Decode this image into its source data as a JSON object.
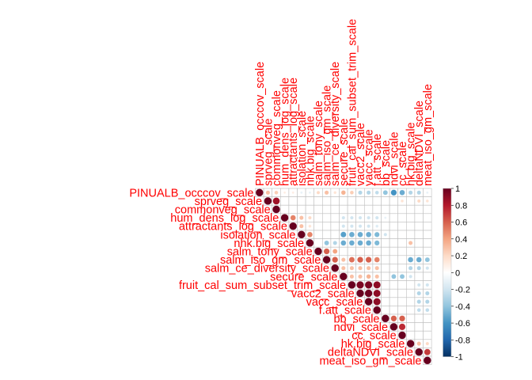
{
  "chart_data": {
    "type": "heatmap",
    "subtype": "correlation-matrix-upper-triangle",
    "method": "circle",
    "variables": [
      "PINUALB_occcov_scale",
      "sprveg_scale",
      "commonveg_scale",
      "hum_dens_log_scale",
      "attractants_log_scale",
      "isolation_scale",
      "nhk.big_scale",
      "salm_tony_scale",
      "salm_iso_gm_scale",
      "salm_ce_diversity_scale",
      "secure_scale",
      "fruit_cal_sum_subset_trim_scale",
      "vacc2_scale",
      "vacc_scale",
      "f.att_scale",
      "bb_scale",
      "ndvi_scale",
      "cc_scale",
      "hk.big_scale",
      "deltaNDVI_scale",
      "meat_iso_gm_scale"
    ],
    "matrix": [
      [
        1,
        0.3,
        0.25,
        0.1,
        0.1,
        -0.1,
        -0.1,
        0.2,
        0.3,
        0.15,
        0.35,
        0.25,
        -0.3,
        -0.3,
        -0.25,
        -0.4,
        -0.6,
        -0.5,
        -0.3,
        -0.3,
        -0.1
      ],
      [
        0.3,
        1,
        0.85,
        0,
        0,
        0,
        0,
        0,
        0,
        0,
        0,
        0,
        0,
        0,
        0,
        0,
        0,
        0.15,
        0,
        0.2,
        0.15
      ],
      [
        0.25,
        0.85,
        1,
        0,
        0,
        0,
        0,
        0,
        0,
        0,
        0,
        0,
        0,
        0,
        0,
        0,
        0,
        0,
        0,
        0,
        0
      ],
      [
        0.1,
        0,
        0,
        1,
        0.5,
        0.3,
        0.2,
        0,
        0,
        0,
        -0.2,
        -0.2,
        -0.2,
        -0.2,
        -0.2,
        -0.1,
        0,
        0,
        0,
        0,
        0
      ],
      [
        0.1,
        0,
        0,
        0.5,
        1,
        0.3,
        0.15,
        0,
        0,
        0,
        -0.2,
        -0.2,
        -0.2,
        -0.2,
        -0.15,
        0,
        0,
        0,
        0,
        0,
        0
      ],
      [
        -0.1,
        0,
        0,
        0.3,
        0.3,
        1,
        0.5,
        0,
        0,
        0,
        -0.55,
        -0.5,
        -0.5,
        -0.5,
        -0.45,
        -0.2,
        0,
        0,
        0,
        0,
        0
      ],
      [
        -0.1,
        0,
        0,
        0.2,
        0.15,
        0.5,
        1,
        0,
        -0.4,
        -0.3,
        -0.5,
        -0.5,
        -0.5,
        -0.5,
        -0.45,
        0,
        0,
        0,
        0.3,
        0,
        0
      ],
      [
        0.2,
        0,
        0,
        0,
        0,
        0,
        0,
        1,
        0.6,
        0.4,
        0,
        0,
        0,
        0,
        0,
        0,
        0,
        0,
        0,
        0,
        0
      ],
      [
        0.3,
        0,
        0,
        0,
        0,
        0,
        -0.4,
        0.6,
        1,
        0.6,
        0.3,
        0.55,
        0.6,
        0.6,
        0.5,
        0,
        0,
        0,
        -0.5,
        -0.5,
        -0.4
      ],
      [
        0.15,
        0,
        0,
        0,
        0,
        0,
        -0.3,
        0.4,
        0.6,
        1,
        0.3,
        0.3,
        0.3,
        0.3,
        0.3,
        0,
        0,
        0,
        -0.3,
        -0.3,
        -0.2
      ],
      [
        0.35,
        0,
        0,
        -0.2,
        -0.2,
        -0.55,
        -0.5,
        0,
        0.3,
        0.3,
        1,
        0.3,
        0.3,
        0.35,
        0.3,
        0,
        -0.4,
        -0.4,
        -0.2,
        0,
        0
      ],
      [
        0.25,
        0,
        0,
        -0.2,
        -0.2,
        -0.5,
        -0.5,
        0,
        0.55,
        0.3,
        0.3,
        1,
        0.95,
        0.95,
        0.9,
        0,
        0,
        0,
        0,
        -0.2,
        -0.2
      ],
      [
        -0.3,
        0,
        0,
        -0.2,
        -0.2,
        -0.5,
        -0.5,
        0,
        0.6,
        0.3,
        0.3,
        0.95,
        1,
        0.98,
        0.9,
        0,
        0,
        0,
        0,
        -0.3,
        -0.3
      ],
      [
        -0.3,
        0,
        0,
        -0.2,
        -0.2,
        -0.5,
        -0.5,
        0,
        0.6,
        0.3,
        0.35,
        0.95,
        0.98,
        1,
        0.9,
        0,
        0,
        0,
        0,
        -0.3,
        -0.3
      ],
      [
        -0.25,
        0,
        0,
        -0.2,
        -0.15,
        -0.45,
        -0.45,
        0,
        0.5,
        0.3,
        0.3,
        0.9,
        0.9,
        0.9,
        1,
        0,
        0,
        0,
        0,
        -0.25,
        -0.25
      ],
      [
        -0.4,
        0,
        0,
        -0.1,
        0,
        -0.2,
        0,
        0,
        0,
        0,
        0,
        0,
        0,
        0,
        0,
        1,
        0.6,
        0.6,
        0,
        0,
        0
      ],
      [
        -0.6,
        0,
        0,
        0,
        0,
        0,
        0,
        0,
        0,
        0,
        -0.4,
        0,
        0,
        0,
        0,
        0.6,
        1,
        0.75,
        0,
        0,
        0
      ],
      [
        -0.5,
        0.15,
        0,
        0,
        0,
        0,
        0,
        0,
        0,
        0,
        -0.4,
        0,
        0,
        0,
        0,
        0.6,
        0.75,
        1,
        0,
        0,
        0
      ],
      [
        -0.3,
        0,
        0,
        0,
        0,
        0,
        0.3,
        0,
        -0.5,
        -0.3,
        -0.2,
        0,
        0,
        0,
        0,
        0,
        0,
        0,
        1,
        0.3,
        0.2
      ],
      [
        -0.3,
        0.2,
        0,
        0,
        0,
        0,
        0,
        0,
        -0.5,
        -0.3,
        0,
        -0.2,
        -0.3,
        -0.3,
        -0.25,
        0,
        0,
        0,
        0.3,
        1,
        0.7
      ],
      [
        -0.1,
        0.15,
        0,
        0,
        0,
        0,
        0,
        0,
        -0.4,
        -0.2,
        0,
        -0.2,
        -0.3,
        -0.3,
        -0.25,
        0,
        0,
        0,
        0.2,
        0.7,
        1
      ]
    ],
    "colorbar": {
      "range": [
        -1,
        1
      ],
      "ticks": [
        "1",
        "0.8",
        "0.6",
        "0.4",
        "0.2",
        "0",
        "-0.2",
        "-0.4",
        "-0.6",
        "-0.8",
        "-1"
      ],
      "colors": [
        "#67001F",
        "#B2182B",
        "#D6604D",
        "#F4A582",
        "#FDDBC7",
        "#FFFFFF",
        "#D1E5F0",
        "#92C5DE",
        "#4393C3",
        "#2166AC",
        "#053061"
      ]
    },
    "label_color": "#FF0000",
    "grid_color": "#BEBEBE"
  }
}
